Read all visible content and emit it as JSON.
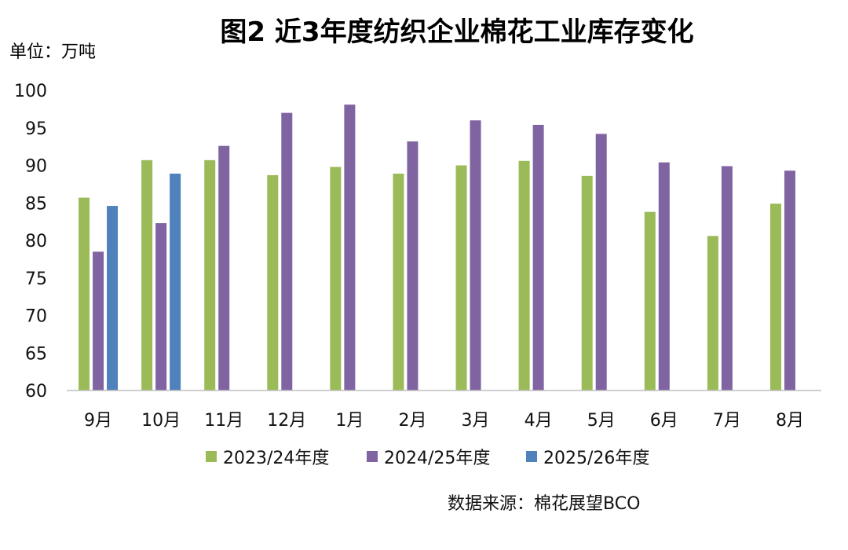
{
  "chart_data": {
    "type": "bar",
    "title": "图2 近3年度纺织企业棉花工业库存变化",
    "unit_label": "单位：万吨",
    "source": "数据来源：棉花展望BCO",
    "categories": [
      "9月",
      "10月",
      "11月",
      "12月",
      "1月",
      "2月",
      "3月",
      "4月",
      "5月",
      "6月",
      "7月",
      "8月"
    ],
    "ylim": [
      60,
      100
    ],
    "yticks": [
      60,
      65,
      70,
      75,
      80,
      85,
      90,
      95,
      100
    ],
    "grid": false,
    "legend_position": "bottom",
    "series": [
      {
        "name": "2023/24年度",
        "color": "#9BBB59",
        "values": [
          85.7,
          90.7,
          90.7,
          88.7,
          89.8,
          88.9,
          90.0,
          90.6,
          88.6,
          83.8,
          80.6,
          84.9
        ]
      },
      {
        "name": "2024/25年度",
        "color": "#8064A2",
        "values": [
          78.5,
          82.3,
          92.6,
          97.0,
          98.1,
          93.2,
          96.0,
          95.4,
          94.2,
          90.4,
          89.9,
          89.3
        ]
      },
      {
        "name": "2025/26年度",
        "color": "#4F81BD",
        "values": [
          84.6,
          88.9,
          null,
          null,
          null,
          null,
          null,
          null,
          null,
          null,
          null,
          null
        ]
      }
    ]
  }
}
